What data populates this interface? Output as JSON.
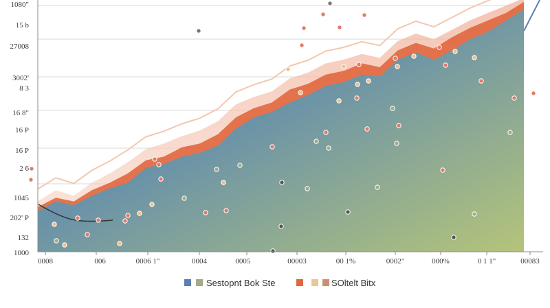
{
  "chart_data": {
    "type": "area",
    "title": "",
    "xlabel": "",
    "ylabel": "",
    "y_tick_labels": [
      "1080\"",
      "15 b",
      "27008",
      "3002'",
      "8 3",
      "16 8\"",
      "16 P",
      "16 P",
      "2 6",
      "1045",
      "202' P",
      "132",
      "1000"
    ],
    "x_tick_labels": [
      "0008",
      "\u0000 006",
      "0006 1\"",
      "0004",
      "0005 \u0000",
      "00003",
      "00 1%",
      "0002\"",
      "000%",
      "0 1 1\"",
      "00083"
    ],
    "x": [
      0,
      1,
      2,
      3,
      4,
      5,
      6,
      7,
      8,
      9,
      10,
      11,
      12,
      13,
      14,
      15,
      16,
      17,
      18,
      19,
      20,
      21,
      22,
      23,
      24,
      25,
      26,
      27
    ],
    "series": [
      {
        "name": "",
        "color": "#5b7fb4",
        "values": [
          22,
          27,
          25,
          30,
          34,
          37,
          45,
          47,
          51,
          53,
          57,
          66,
          72,
          75,
          80,
          84,
          89,
          91,
          95,
          94,
          103,
          107,
          103,
          108,
          114,
          118,
          124,
          130
        ]
      },
      {
        "name": "",
        "color": "#e0673f",
        "values": [
          24,
          29,
          27,
          33,
          37,
          42,
          49,
          51,
          56,
          58,
          63,
          72,
          77,
          80,
          87,
          90,
          95,
          97,
          101,
          99,
          108,
          112,
          109,
          115,
          120,
          124,
          128,
          134
        ]
      },
      {
        "name": "",
        "color": "#eea27f",
        "values": [
          27,
          33,
          30,
          37,
          42,
          48,
          55,
          58,
          62,
          65,
          70,
          79,
          83,
          86,
          93,
          96,
          101,
          103,
          106,
          104,
          113,
          117,
          114,
          119,
          124,
          128,
          132,
          136
        ]
      }
    ],
    "ylim": [
      0,
      135
    ],
    "legend": [
      {
        "label": "Sestopnt Bok Ste",
        "colors": [
          "#5b7fb4",
          "#a3ab8b"
        ]
      },
      {
        "label": "SOltelt Bitx",
        "colors": [
          "#e0673f",
          "#e9c896",
          "#c89072"
        ]
      }
    ],
    "legend_position": "bottom",
    "grid": "horizontal"
  }
}
